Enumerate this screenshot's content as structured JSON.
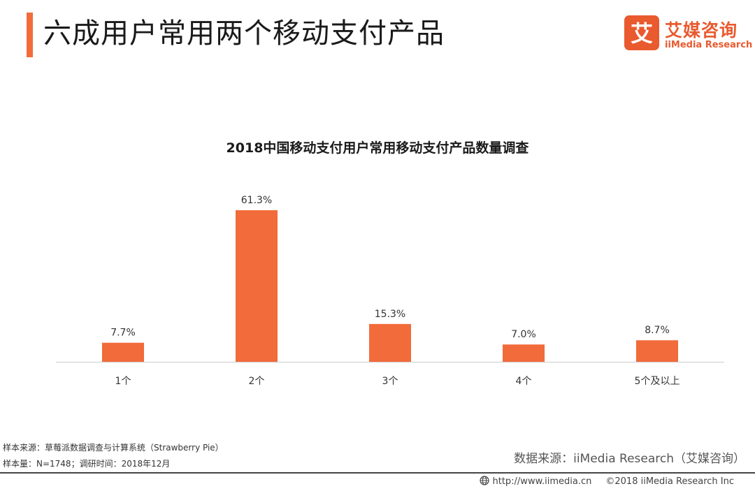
{
  "header": {
    "title": "六成用户常用两个移动支付产品"
  },
  "logo": {
    "mark_char": "艾",
    "name": "艾媒咨询",
    "subtitle": "iiMedia Research"
  },
  "colors": {
    "accent": "#f26b3a",
    "bar": "#f26b3a",
    "logo": "#e95a2f",
    "axis": "#cccccc"
  },
  "chart_data": {
    "type": "bar",
    "title": "2018中国移动支付用户常用移动支付产品数量调查",
    "categories": [
      "1个",
      "2个",
      "3个",
      "4个",
      "5个及以上"
    ],
    "values": [
      7.7,
      61.3,
      15.3,
      7.0,
      8.7
    ],
    "value_labels": [
      "7.7%",
      "61.3%",
      "15.3%",
      "7.0%",
      "8.7%"
    ],
    "unit": "%",
    "xlabel": "",
    "ylabel": "",
    "ylim": [
      0,
      61.3
    ],
    "grid": false,
    "legend": "none"
  },
  "notes": {
    "sample_source": "样本来源：草莓派数据调查与计算系统（Strawberry Pie）",
    "sample_size": "样本量：N=1748；调研时间：2018年12月"
  },
  "source": "数据来源：iiMedia Research（艾媒咨询）",
  "footer": {
    "url": "http://www.iimedia.cn",
    "copyright": "©2018  iiMedia Research  Inc"
  }
}
